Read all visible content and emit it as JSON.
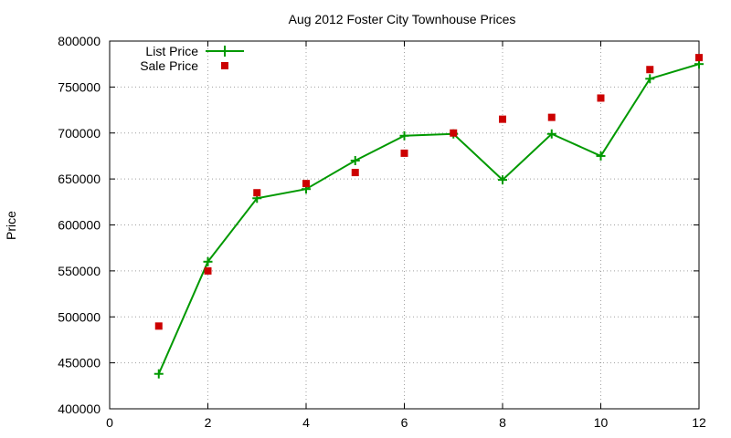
{
  "chart_data": {
    "type": "line",
    "title": "Aug 2012 Foster City Townhouse Prices",
    "xlabel": "",
    "ylabel": "Price",
    "xlim": [
      0,
      12
    ],
    "ylim": [
      400000,
      800000
    ],
    "x_ticks": [
      0,
      2,
      4,
      6,
      8,
      10,
      12
    ],
    "y_ticks": [
      400000,
      450000,
      500000,
      550000,
      600000,
      650000,
      700000,
      750000,
      800000
    ],
    "grid": true,
    "legend_position": "top-left",
    "series": [
      {
        "name": "List Price",
        "style": "line-with-plus-markers",
        "color": "#009900",
        "x": [
          1,
          2,
          3,
          4,
          5,
          6,
          7,
          8,
          9,
          10,
          11,
          12
        ],
        "values": [
          438000,
          560000,
          629000,
          639000,
          670000,
          697000,
          699000,
          649000,
          699000,
          675000,
          759000,
          775000
        ]
      },
      {
        "name": "Sale Price",
        "style": "square-markers",
        "color": "#cc0000",
        "x": [
          1,
          2,
          3,
          4,
          5,
          6,
          7,
          8,
          9,
          10,
          11,
          12
        ],
        "values": [
          490000,
          550000,
          635000,
          645000,
          657000,
          678000,
          700000,
          715000,
          717000,
          738000,
          769000,
          782000
        ]
      }
    ]
  }
}
